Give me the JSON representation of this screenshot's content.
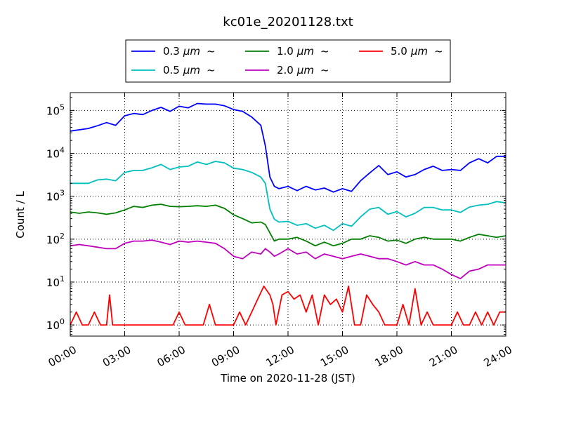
{
  "chart_data": {
    "type": "line",
    "title": "kc01e_20201128.txt",
    "xlabel": "Time on 2020-11-28 (JST)",
    "ylabel": "Count / L",
    "yscale": "log",
    "ylim": [
      0.55,
      260000
    ],
    "xlim": [
      "00:00",
      "24:00"
    ],
    "x_ticks": [
      "00:00",
      "03:00",
      "06:00",
      "09:00",
      "12:00",
      "15:00",
      "18:00",
      "21:00",
      "24:00"
    ],
    "y_ticks": [
      {
        "value": 1,
        "base": "10",
        "exp": "0"
      },
      {
        "value": 10,
        "base": "10",
        "exp": "1"
      },
      {
        "value": 100,
        "base": "10",
        "exp": "2"
      },
      {
        "value": 1000,
        "base": "10",
        "exp": "3"
      },
      {
        "value": 10000,
        "base": "10",
        "exp": "4"
      },
      {
        "value": 100000,
        "base": "10",
        "exp": "5"
      }
    ],
    "grid": true,
    "legend_position": "top, above plot",
    "legend_unit": "μm",
    "legend_suffix": "~",
    "series": [
      {
        "name": "0.3",
        "color": "#0000ff",
        "x": [
          "00:00",
          "01:00",
          "01:30",
          "02:00",
          "02:30",
          "03:00",
          "03:30",
          "04:00",
          "04:30",
          "05:00",
          "05:30",
          "06:00",
          "06:30",
          "07:00",
          "07:30",
          "08:00",
          "08:30",
          "09:00",
          "09:30",
          "10:00",
          "10:30",
          "10:45",
          "11:00",
          "11:15",
          "11:30",
          "12:00",
          "12:30",
          "13:00",
          "13:30",
          "14:00",
          "14:30",
          "15:00",
          "15:30",
          "16:00",
          "16:30",
          "17:00",
          "17:30",
          "18:00",
          "18:30",
          "19:00",
          "19:30",
          "20:00",
          "20:30",
          "21:00",
          "21:30",
          "22:00",
          "22:30",
          "23:00",
          "23:30",
          "24:00"
        ],
        "y": [
          33000,
          38000,
          44000,
          52000,
          45000,
          75000,
          85000,
          80000,
          100000,
          118000,
          95000,
          125000,
          115000,
          145000,
          140000,
          140000,
          128000,
          105000,
          95000,
          70000,
          45000,
          15000,
          2800,
          1700,
          1500,
          1700,
          1350,
          1700,
          1400,
          1550,
          1250,
          1500,
          1300,
          2300,
          3500,
          5200,
          3200,
          3700,
          2800,
          3200,
          4200,
          5000,
          4000,
          4200,
          4000,
          6000,
          7500,
          6000,
          8500,
          8500
        ]
      },
      {
        "name": "0.5",
        "color": "#00bfbf",
        "x": [
          "00:00",
          "01:00",
          "01:30",
          "02:00",
          "02:30",
          "03:00",
          "03:30",
          "04:00",
          "04:30",
          "05:00",
          "05:30",
          "06:00",
          "06:30",
          "07:00",
          "07:30",
          "08:00",
          "08:30",
          "09:00",
          "09:30",
          "10:00",
          "10:30",
          "10:45",
          "11:00",
          "11:15",
          "11:30",
          "12:00",
          "12:30",
          "13:00",
          "13:30",
          "14:00",
          "14:30",
          "15:00",
          "15:30",
          "16:00",
          "16:30",
          "17:00",
          "17:30",
          "18:00",
          "18:30",
          "19:00",
          "19:30",
          "20:00",
          "20:30",
          "21:00",
          "21:30",
          "22:00",
          "22:30",
          "23:00",
          "23:30",
          "24:00"
        ],
        "y": [
          2000,
          2000,
          2400,
          2500,
          2300,
          3600,
          4000,
          4000,
          4600,
          5500,
          4200,
          4800,
          5000,
          6300,
          5500,
          6500,
          6000,
          4500,
          4200,
          3600,
          2800,
          2000,
          500,
          290,
          250,
          260,
          210,
          230,
          180,
          210,
          160,
          230,
          200,
          330,
          500,
          550,
          380,
          440,
          330,
          400,
          550,
          550,
          480,
          480,
          420,
          560,
          620,
          650,
          750,
          700
        ]
      },
      {
        "name": "1.0",
        "color": "#008000",
        "x": [
          "00:00",
          "00:30",
          "01:00",
          "01:30",
          "02:00",
          "02:30",
          "03:00",
          "03:30",
          "04:00",
          "04:30",
          "05:00",
          "05:30",
          "06:00",
          "06:30",
          "07:00",
          "07:30",
          "08:00",
          "08:30",
          "09:00",
          "09:30",
          "10:00",
          "10:30",
          "10:45",
          "11:00",
          "11:15",
          "11:30",
          "12:00",
          "12:30",
          "13:00",
          "13:30",
          "14:00",
          "14:30",
          "15:00",
          "15:30",
          "16:00",
          "16:30",
          "17:00",
          "17:30",
          "18:00",
          "18:30",
          "19:00",
          "19:30",
          "20:00",
          "20:30",
          "21:00",
          "21:30",
          "22:00",
          "22:30",
          "23:00",
          "23:30",
          "24:00"
        ],
        "y": [
          430,
          400,
          430,
          410,
          380,
          410,
          480,
          580,
          550,
          620,
          650,
          580,
          570,
          580,
          600,
          580,
          620,
          520,
          370,
          300,
          240,
          250,
          220,
          140,
          90,
          100,
          100,
          110,
          90,
          70,
          85,
          70,
          80,
          100,
          100,
          120,
          110,
          90,
          95,
          80,
          100,
          110,
          100,
          100,
          100,
          90,
          110,
          130,
          120,
          110,
          120
        ]
      },
      {
        "name": "2.0",
        "color": "#bf00bf",
        "x": [
          "00:00",
          "00:30",
          "01:00",
          "01:30",
          "02:00",
          "02:30",
          "03:00",
          "03:30",
          "04:00",
          "04:30",
          "05:00",
          "05:30",
          "06:00",
          "06:30",
          "07:00",
          "07:30",
          "08:00",
          "08:30",
          "09:00",
          "09:30",
          "10:00",
          "10:30",
          "10:45",
          "11:00",
          "11:15",
          "11:30",
          "12:00",
          "12:30",
          "13:00",
          "13:30",
          "14:00",
          "14:30",
          "15:00",
          "15:30",
          "16:00",
          "16:30",
          "17:00",
          "17:30",
          "18:00",
          "18:30",
          "19:00",
          "19:30",
          "20:00",
          "20:30",
          "21:00",
          "21:30",
          "22:00",
          "22:30",
          "23:00",
          "23:30",
          "24:00"
        ],
        "y": [
          70,
          75,
          70,
          65,
          60,
          60,
          80,
          90,
          90,
          95,
          85,
          75,
          90,
          85,
          90,
          85,
          80,
          60,
          40,
          35,
          50,
          45,
          60,
          50,
          40,
          45,
          60,
          45,
          50,
          35,
          45,
          40,
          35,
          40,
          45,
          40,
          35,
          35,
          30,
          25,
          30,
          25,
          25,
          20,
          15,
          12,
          18,
          20,
          25,
          25,
          25
        ]
      },
      {
        "name": "5.0",
        "color": "#ff0000",
        "x": [
          "00:00",
          "00:20",
          "00:40",
          "01:00",
          "01:20",
          "01:40",
          "02:00",
          "02:10",
          "02:20",
          "02:30",
          "02:50",
          "03:00",
          "03:15",
          "03:30",
          "03:45",
          "04:00",
          "04:20",
          "04:40",
          "05:00",
          "05:20",
          "05:40",
          "06:00",
          "06:20",
          "06:40",
          "07:00",
          "07:20",
          "07:40",
          "08:00",
          "08:20",
          "08:40",
          "09:00",
          "09:20",
          "09:40",
          "10:00",
          "10:20",
          "10:40",
          "11:00",
          "11:10",
          "11:20",
          "11:40",
          "12:00",
          "12:20",
          "12:40",
          "13:00",
          "13:20",
          "13:40",
          "14:00",
          "14:20",
          "14:40",
          "15:00",
          "15:20",
          "15:40",
          "16:00",
          "16:20",
          "16:40",
          "17:00",
          "17:20",
          "17:40",
          "18:00",
          "18:20",
          "18:40",
          "19:00",
          "19:20",
          "19:40",
          "20:00",
          "20:20",
          "20:40",
          "21:00",
          "21:20",
          "21:40",
          "22:00",
          "22:20",
          "22:40",
          "23:00",
          "23:20",
          "23:40",
          "24:00"
        ],
        "y": [
          1,
          2,
          1,
          1,
          2,
          1,
          1,
          5,
          1,
          1,
          1,
          1,
          1,
          1,
          1,
          1,
          1,
          1,
          1,
          1,
          1,
          2,
          1,
          1,
          1,
          1,
          3,
          1,
          1,
          1,
          1,
          2,
          1,
          2,
          4,
          8,
          5,
          3,
          1,
          5,
          6,
          4,
          5,
          2,
          5,
          1,
          5,
          3,
          4,
          2,
          8,
          1,
          1,
          5,
          3,
          2,
          1,
          1,
          1,
          3,
          1,
          7,
          1,
          2,
          1,
          1,
          1,
          1,
          2,
          1,
          1,
          2,
          1,
          2,
          1,
          2,
          2
        ]
      }
    ]
  }
}
